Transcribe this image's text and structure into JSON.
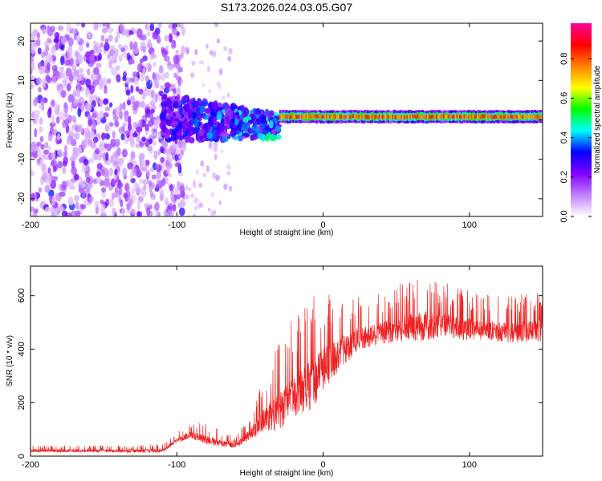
{
  "title": "S173.2026.024.03.05.G07",
  "chart_data": [
    {
      "type": "heatmap",
      "name": "spectrogram",
      "xlabel": "Height of straight line (km)",
      "ylabel": "Frequency (Hz)",
      "xlim": [
        -200,
        150
      ],
      "ylim": [
        -24.5,
        24.5
      ],
      "xticks": [
        -200,
        -100,
        0,
        100
      ],
      "yticks": [
        -20,
        -10,
        0,
        10,
        20
      ],
      "colorbar": {
        "label": "Normalized spectral amplitude",
        "range": [
          0,
          0.98
        ],
        "ticks": [
          0.0,
          0.2,
          0.4,
          0.6,
          0.8
        ],
        "tick_labels": [
          "0.0",
          "0.2",
          "0.4",
          "0.6",
          "0.8"
        ],
        "colors": [
          "#ffffff",
          "#c080ff",
          "#8000ff",
          "#0000ff",
          "#00ffff",
          "#00ff00",
          "#ffff00",
          "#ff8000",
          "#ff0000",
          "#ff00a0"
        ]
      },
      "noise_region": {
        "x_range": [
          -200,
          -110
        ],
        "amplitude": 0.22
      },
      "transition_region": {
        "x_range": [
          -110,
          -30
        ],
        "center_hz": 0.5,
        "spread_hz": 6
      },
      "signal_line": {
        "x_range": [
          -30,
          150
        ],
        "frequency_hz": 0.8,
        "amplitude": 0.8
      }
    },
    {
      "type": "line",
      "name": "snr",
      "xlabel": "Height of straight line (km)",
      "ylabel": "SNR (10 * v/v)",
      "xlim": [
        -200,
        150
      ],
      "ylim": [
        0,
        710
      ],
      "xticks": [
        -200,
        -100,
        0,
        100
      ],
      "yticks": [
        0,
        200,
        400,
        600
      ],
      "color": "#ee2222",
      "series": [
        {
          "name": "SNR",
          "x": [
            -200,
            -150,
            -110,
            -100,
            -90,
            -80,
            -70,
            -60,
            -50,
            -40,
            -30,
            -20,
            -10,
            0,
            10,
            20,
            30,
            40,
            50,
            60,
            70,
            80,
            90,
            100,
            110,
            120,
            130,
            150
          ],
          "baseline": [
            20,
            20,
            20,
            60,
            80,
            60,
            50,
            40,
            80,
            140,
            170,
            220,
            260,
            320,
            380,
            420,
            445,
            460,
            470,
            480,
            485,
            490,
            480,
            475,
            470,
            465,
            460,
            470
          ],
          "peak_envelope": [
            40,
            40,
            45,
            90,
            130,
            120,
            100,
            70,
            150,
            300,
            450,
            520,
            600,
            640,
            620,
            600,
            590,
            610,
            640,
            660,
            690,
            650,
            640,
            620,
            600,
            610,
            600,
            620
          ]
        }
      ]
    }
  ]
}
